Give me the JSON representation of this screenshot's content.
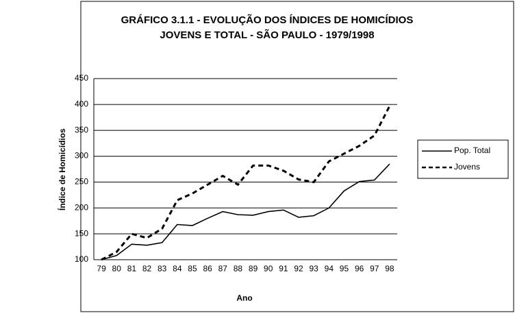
{
  "chart_data": {
    "type": "line",
    "title": [
      "GRÁFICO 3.1.1 - EVOLUÇÃO DOS ÍNDICES DE HOMICÍDIOS",
      "JOVENS E TOTAL - SÃO PAULO - 1979/1998"
    ],
    "xlabel": "Ano",
    "ylabel": "Índice de Homicídios",
    "categories": [
      "79",
      "80",
      "81",
      "82",
      "83",
      "84",
      "85",
      "86",
      "87",
      "88",
      "89",
      "90",
      "91",
      "92",
      "93",
      "94",
      "95",
      "96",
      "97",
      "98"
    ],
    "series": [
      {
        "name": "Pop. Total",
        "color": "#000000",
        "dash": "solid",
        "values": [
          100,
          108,
          130,
          128,
          133,
          168,
          166,
          180,
          193,
          187,
          186,
          193,
          196,
          182,
          185,
          200,
          233,
          251,
          254,
          285
        ]
      },
      {
        "name": "Jovens",
        "color": "#000000",
        "dash": "dashed",
        "values": [
          100,
          115,
          150,
          142,
          160,
          215,
          228,
          245,
          262,
          245,
          282,
          282,
          272,
          255,
          250,
          290,
          305,
          320,
          340,
          397
        ]
      }
    ],
    "ylim": [
      100,
      450
    ],
    "yticks": [
      100,
      150,
      200,
      250,
      300,
      350,
      400,
      450
    ],
    "grid": true,
    "legend": "right"
  }
}
